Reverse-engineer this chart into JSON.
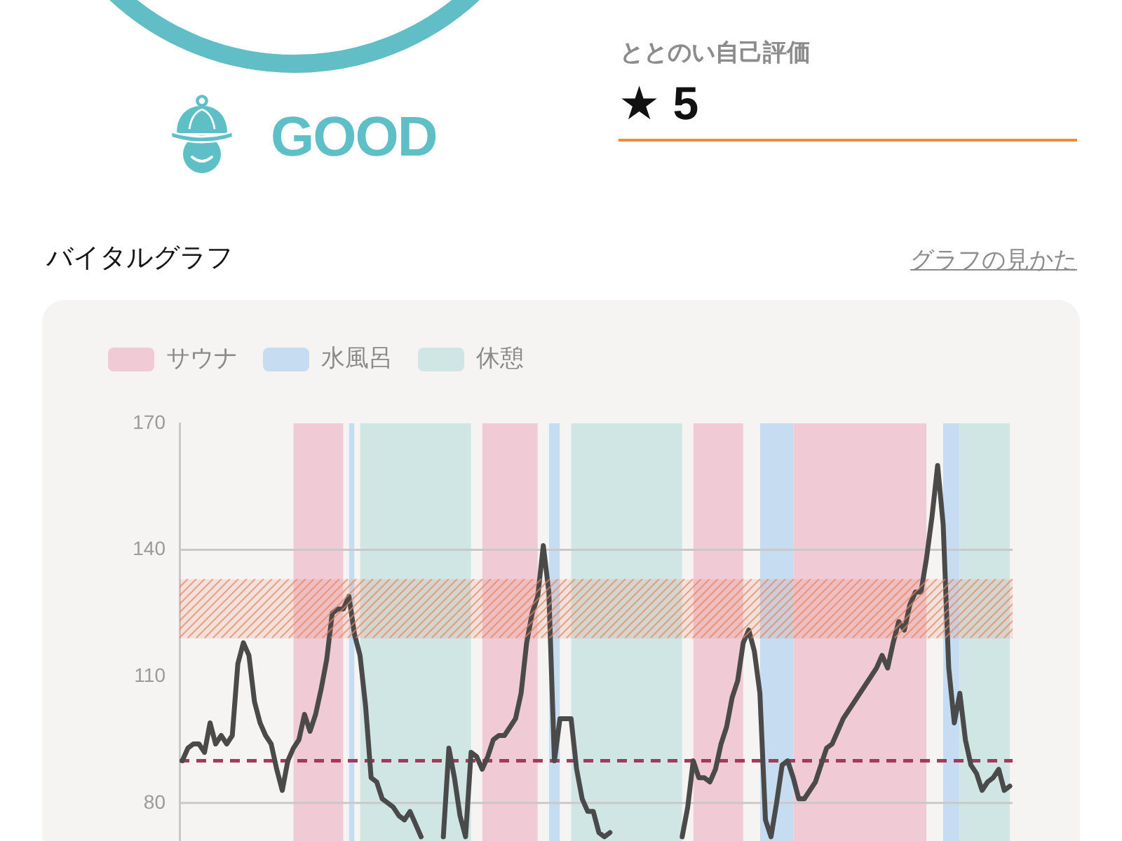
{
  "chart_data": {
    "type": "line",
    "title": "バイタルグラフ",
    "annotations": [
      "GOOD",
      "ととのい自己評価",
      "★ 5",
      "グラフの見かた"
    ],
    "categories": [
      null,
      null,
      null,
      null,
      null,
      null,
      null,
      null,
      null,
      null,
      null,
      null,
      null,
      null,
      null,
      null,
      null,
      null,
      null,
      null,
      null,
      null,
      null,
      null,
      null,
      null,
      null,
      null,
      null,
      null,
      null,
      null,
      null,
      null,
      null,
      null,
      null,
      null,
      null,
      null,
      null,
      null,
      null,
      null,
      null,
      null,
      null,
      null,
      null,
      null,
      null,
      null,
      null,
      null,
      null,
      null,
      null,
      null,
      null,
      null,
      null,
      null,
      null,
      null,
      null,
      null,
      null,
      null,
      null,
      null,
      null,
      null,
      null,
      null,
      null,
      null,
      null,
      null,
      null,
      null,
      null,
      null,
      null,
      null,
      null,
      null,
      null,
      null,
      null,
      null,
      null,
      null,
      null,
      null,
      null,
      null,
      null,
      null,
      null,
      null,
      null,
      null,
      null,
      null,
      null,
      null,
      null,
      null,
      null,
      null,
      null,
      null,
      null,
      null,
      null,
      null,
      null,
      null,
      null,
      null,
      null,
      null,
      null,
      null,
      null,
      null,
      null,
      null,
      null,
      null,
      null,
      null,
      null,
      null,
      null,
      null,
      null,
      null,
      null,
      null,
      null,
      null,
      null,
      null,
      null,
      null,
      null,
      null,
      null,
      null
    ],
    "series": [
      {
        "type": "area",
        "name": "サウナ",
        "color": "#f0cad5",
        "values": [
          null,
          null,
          null,
          null,
          null,
          null,
          null,
          null,
          null,
          null,
          null,
          null,
          null,
          null,
          null,
          null,
          null,
          null,
          null,
          null,
          170,
          170,
          170,
          170,
          170,
          170,
          170,
          170,
          170,
          170,
          null,
          null,
          null,
          null,
          null,
          null,
          null,
          null,
          null,
          null,
          null,
          null,
          null,
          null,
          null,
          null,
          null,
          null,
          null,
          null,
          null,
          null,
          null,
          null,
          170,
          170,
          170,
          170,
          170,
          170,
          170,
          170,
          170,
          170,
          170,
          null,
          null,
          null,
          null,
          null,
          null,
          null,
          null,
          null,
          null,
          null,
          null,
          null,
          null,
          null,
          null,
          null,
          null,
          null,
          null,
          null,
          null,
          null,
          null,
          null,
          null,
          null,
          170,
          170,
          170,
          170,
          170,
          170,
          170,
          170,
          170,
          170,
          null,
          null,
          null,
          null,
          null,
          null,
          null,
          null,
          170,
          170,
          170,
          170,
          170,
          170,
          170,
          170,
          170,
          170,
          170,
          170,
          170,
          170,
          170,
          170,
          170,
          170,
          170,
          170,
          170,
          170,
          170,
          170,
          170,
          null,
          null,
          null,
          null,
          null,
          null,
          null,
          null,
          null,
          null,
          null,
          null,
          null,
          null,
          null
        ]
      },
      {
        "type": "area",
        "name": "水風呂",
        "color": "#c6dcf0",
        "values": [
          null,
          null,
          null,
          null,
          null,
          null,
          null,
          null,
          null,
          null,
          null,
          null,
          null,
          null,
          null,
          null,
          null,
          null,
          null,
          null,
          null,
          null,
          null,
          null,
          null,
          null,
          null,
          null,
          null,
          null,
          170,
          170,
          null,
          null,
          null,
          null,
          null,
          null,
          null,
          null,
          null,
          null,
          null,
          null,
          null,
          null,
          null,
          null,
          null,
          null,
          null,
          null,
          null,
          null,
          null,
          null,
          null,
          null,
          null,
          null,
          null,
          null,
          null,
          null,
          null,
          null,
          170,
          170,
          170,
          null,
          null,
          null,
          null,
          null,
          null,
          null,
          null,
          null,
          null,
          null,
          null,
          null,
          null,
          null,
          null,
          null,
          null,
          null,
          null,
          null,
          null,
          null,
          null,
          null,
          null,
          null,
          null,
          null,
          null,
          null,
          null,
          null,
          null,
          null,
          170,
          170,
          170,
          170,
          170,
          170,
          170,
          null,
          null,
          null,
          null,
          null,
          null,
          null,
          null,
          null,
          null,
          null,
          null,
          null,
          null,
          null,
          null,
          null,
          null,
          null,
          null,
          null,
          null,
          null,
          null,
          null,
          null,
          170,
          170,
          170,
          170,
          null,
          null,
          null,
          null,
          null,
          null,
          null,
          null,
          null
        ]
      },
      {
        "type": "area",
        "name": "休憩",
        "color": "#d0e6e4",
        "values": [
          null,
          null,
          null,
          null,
          null,
          null,
          null,
          null,
          null,
          null,
          null,
          null,
          null,
          null,
          null,
          null,
          null,
          null,
          null,
          null,
          null,
          null,
          null,
          null,
          null,
          null,
          null,
          null,
          null,
          null,
          null,
          null,
          170,
          170,
          170,
          170,
          170,
          170,
          170,
          170,
          170,
          170,
          170,
          170,
          170,
          170,
          170,
          170,
          170,
          170,
          170,
          170,
          170,
          null,
          null,
          null,
          null,
          null,
          null,
          null,
          null,
          null,
          null,
          null,
          null,
          null,
          null,
          null,
          null,
          null,
          170,
          170,
          170,
          170,
          170,
          170,
          170,
          170,
          170,
          170,
          170,
          170,
          170,
          170,
          170,
          170,
          170,
          170,
          170,
          170,
          170,
          null,
          null,
          null,
          null,
          null,
          null,
          null,
          null,
          null,
          null,
          null,
          null,
          null,
          null,
          null,
          null,
          null,
          null,
          null,
          null,
          null,
          null,
          null,
          null,
          null,
          null,
          null,
          null,
          null,
          null,
          null,
          null,
          null,
          null,
          null,
          null,
          null,
          null,
          null,
          null,
          null,
          null,
          null,
          null,
          null,
          null,
          null,
          null,
          null,
          170,
          170,
          170,
          170,
          170,
          170,
          170,
          170,
          170,
          170
        ]
      },
      {
        "color": "#4a4a4a",
        "values": [
          90,
          93,
          94,
          94,
          92,
          99,
          94,
          96,
          94,
          96,
          113,
          118,
          115,
          104,
          99,
          96,
          94,
          88,
          83,
          90,
          93,
          95,
          101,
          97,
          101,
          107,
          114,
          125,
          126,
          126,
          129,
          120,
          115,
          103,
          86,
          85,
          81,
          80,
          79,
          77,
          76,
          78,
          75,
          72,
          null,
          null,
          null,
          72,
          93,
          86,
          77,
          72,
          92,
          91,
          88,
          91,
          95,
          96,
          96,
          98,
          100,
          106,
          118,
          125,
          129,
          141,
          130,
          90,
          100,
          100,
          100,
          88,
          81,
          78,
          78,
          73,
          72,
          73,
          null,
          null,
          null,
          null,
          null,
          null,
          null,
          null,
          null,
          null,
          null,
          null,
          72,
          79,
          90,
          86,
          86,
          85,
          88,
          94,
          98,
          105,
          109,
          118,
          121,
          116,
          106,
          76,
          72,
          80,
          89,
          90,
          86,
          81,
          81,
          83,
          85,
          89,
          93,
          94,
          97,
          100,
          102,
          104,
          106,
          108,
          110,
          112,
          115,
          112,
          118,
          123,
          121,
          127,
          130,
          130,
          138,
          148,
          160,
          146,
          112,
          99,
          106,
          95,
          89,
          87,
          83,
          85,
          86,
          88,
          83,
          84
        ]
      }
    ],
    "ylim": [
      71,
      170
    ],
    "yticks": [
      170,
      140,
      110,
      80
    ],
    "bands": [
      {
        "axis": "y",
        "from": 119,
        "to": 133,
        "color": "#e8835f"
      }
    ],
    "ref_lines": [
      {
        "axis": "y",
        "value": 140,
        "color": "#c9c9c9"
      },
      {
        "axis": "y",
        "value": 80,
        "color": "#c9c9c9"
      },
      {
        "axis": "y",
        "value": 90,
        "color": "#a5395b",
        "line_style": "dashed"
      }
    ],
    "legend": "top left",
    "marker": "none",
    "tick_labels": "y"
  }
}
